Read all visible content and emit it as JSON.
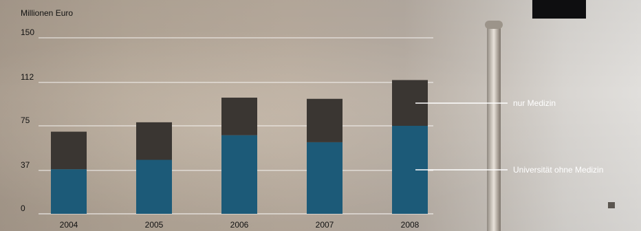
{
  "chart_data": {
    "type": "bar",
    "stacked": true,
    "ylabel": "Millionen Euro",
    "categories": [
      "2004",
      "2005",
      "2006",
      "2007",
      "2008"
    ],
    "yticks": [
      "0",
      "37",
      "75",
      "112",
      "150"
    ],
    "ylim": [
      0,
      150
    ],
    "grid": true,
    "legend_placement": "right",
    "series": [
      {
        "name": "Universität ohne Medizin",
        "values": [
          38,
          46,
          67,
          61,
          75
        ],
        "color": "#1c5a78"
      },
      {
        "name": "nur Medizin",
        "values": [
          32,
          32,
          32,
          37,
          39
        ],
        "color": "#3a3632"
      }
    ]
  }
}
